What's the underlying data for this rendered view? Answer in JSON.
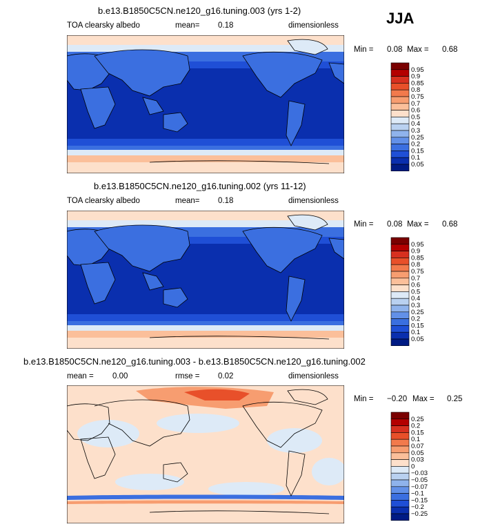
{
  "season": "JJA",
  "panels": [
    {
      "title": "b.e13.B1850C5CN.ne120_g16.tuning.003 (yrs 1-2)",
      "field": "TOA clearsky albedo",
      "stat1_label": "mean=",
      "stat1_value": "0.18",
      "units": "dimensionless",
      "min_label": "Min =",
      "min_value": "0.08",
      "max_label": "Max =",
      "max_value": "0.68"
    },
    {
      "title": "b.e13.B1850C5CN.ne120_g16.tuning.002 (yrs 11-12)",
      "field": "TOA clearsky albedo",
      "stat1_label": "mean=",
      "stat1_value": "0.18",
      "units": "dimensionless",
      "min_label": "Min =",
      "min_value": "0.08",
      "max_label": "Max =",
      "max_value": "0.68"
    },
    {
      "title": "b.e13.B1850C5CN.ne120_g16.tuning.003 - b.e13.B1850C5CN.ne120_g16.tuning.002",
      "stat1_label": "mean =",
      "stat1_value": "0.00",
      "stat2_label": "rmse =",
      "stat2_value": "0.02",
      "units": "dimensionless",
      "min_label": "Min =",
      "min_value": "−0.20",
      "max_label": "Max =",
      "max_value": "0.25"
    }
  ],
  "chart_data": [
    {
      "type": "heatmap",
      "title": "b.e13.B1850C5CN.ne120_g16.tuning.003 (yrs 1-2)",
      "colorbar_labels": [
        "0.95",
        "0.9",
        "0.85",
        "0.8",
        "0.75",
        "0.7",
        "0.6",
        "0.5",
        "0.4",
        "0.3",
        "0.25",
        "0.2",
        "0.15",
        "0.1",
        "0.05"
      ],
      "colorbar_colors": [
        "#7a0000",
        "#b30000",
        "#d7301f",
        "#e8502a",
        "#f27a4c",
        "#f79d70",
        "#fbbf9a",
        "#fde0cb",
        "#ddeaf7",
        "#b9d1f0",
        "#8fb3ec",
        "#6290e8",
        "#3b6fe0",
        "#1f4fd6",
        "#0a2fae",
        "#001b84"
      ],
      "mean": 0.18,
      "min": 0.08,
      "max": 0.68
    },
    {
      "type": "heatmap",
      "title": "b.e13.B1850C5CN.ne120_g16.tuning.002 (yrs 11-12)",
      "colorbar_labels": [
        "0.95",
        "0.9",
        "0.85",
        "0.8",
        "0.75",
        "0.7",
        "0.6",
        "0.5",
        "0.4",
        "0.3",
        "0.25",
        "0.2",
        "0.15",
        "0.1",
        "0.05"
      ],
      "colorbar_colors": [
        "#7a0000",
        "#b30000",
        "#d7301f",
        "#e8502a",
        "#f27a4c",
        "#f79d70",
        "#fbbf9a",
        "#fde0cb",
        "#ddeaf7",
        "#b9d1f0",
        "#8fb3ec",
        "#6290e8",
        "#3b6fe0",
        "#1f4fd6",
        "#0a2fae",
        "#001b84"
      ],
      "mean": 0.18,
      "min": 0.08,
      "max": 0.68
    },
    {
      "type": "heatmap",
      "title": "b.e13.B1850C5CN.ne120_g16.tuning.003 - b.e13.B1850C5CN.ne120_g16.tuning.002",
      "colorbar_labels": [
        "0.25",
        "0.2",
        "0.15",
        "0.1",
        "0.07",
        "0.05",
        "0.03",
        "0",
        "−0.03",
        "−0.05",
        "−0.07",
        "−0.1",
        "−0.15",
        "−0.2",
        "−0.25"
      ],
      "colorbar_colors": [
        "#7a0000",
        "#b30000",
        "#d7301f",
        "#e8502a",
        "#f27a4c",
        "#f79d70",
        "#fbbf9a",
        "#fde0cb",
        "#ddeaf7",
        "#b9d1f0",
        "#8fb3ec",
        "#6290e8",
        "#3b6fe0",
        "#1f4fd6",
        "#0a2fae",
        "#001b84"
      ],
      "mean": 0.0,
      "rmse": 0.02,
      "min": -0.2,
      "max": 0.25
    }
  ]
}
